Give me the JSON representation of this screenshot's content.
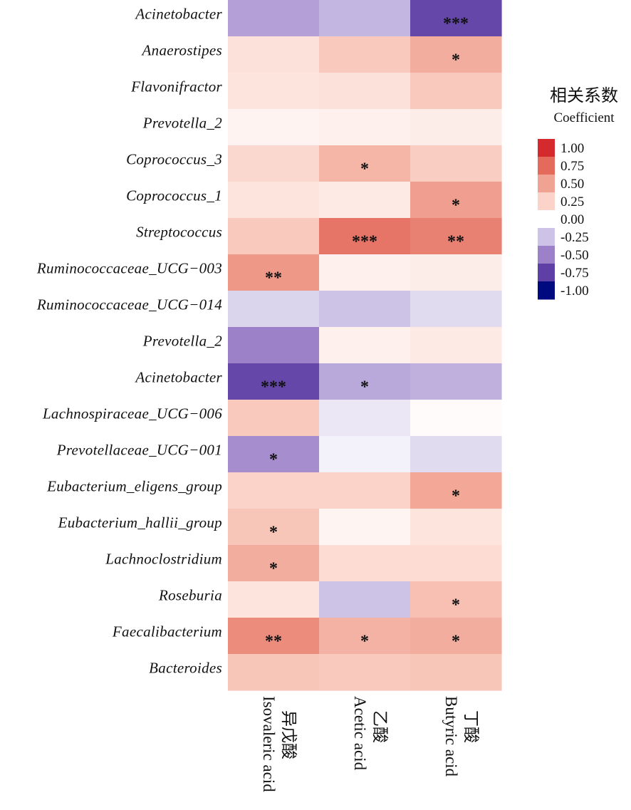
{
  "chart_data": {
    "type": "heatmap",
    "rows": [
      "Acinetobacter",
      "Anaerostipes",
      "Flavonifractor",
      "Prevotella_2",
      "Coprococcus_3",
      "Coprococcus_1",
      "Streptococcus",
      "Ruminococcaceae_UCG−003",
      "Ruminococcaceae_UCG−014",
      "Prevotella_2",
      "Acinetobacter",
      "Lachnospiraceae_UCG−006",
      "Prevotellaceae_UCG−001",
      "Eubacterium_eligens_group",
      "Eubacterium_hallii_group",
      "Lachnoclostridium",
      "Roseburia",
      "Faecalibacterium",
      "Bacteroides"
    ],
    "columns": [
      {
        "zh": "异戊酸",
        "en": "Isovaleric acid"
      },
      {
        "zh": "乙酸",
        "en": "Acetic acid"
      },
      {
        "zh": "丁酸",
        "en": "Butyric acid"
      }
    ],
    "values": [
      [
        -0.38,
        -0.3,
        -0.72
      ],
      [
        0.17,
        0.3,
        0.45
      ],
      [
        0.15,
        0.17,
        0.3
      ],
      [
        0.07,
        0.08,
        0.1
      ],
      [
        0.22,
        0.4,
        0.28
      ],
      [
        0.15,
        0.12,
        0.52
      ],
      [
        0.3,
        0.7,
        0.65
      ],
      [
        0.55,
        0.08,
        0.1
      ],
      [
        -0.18,
        -0.25,
        -0.15
      ],
      [
        -0.5,
        0.08,
        0.12
      ],
      [
        -0.72,
        -0.35,
        -0.32
      ],
      [
        0.3,
        -0.1,
        0.02
      ],
      [
        -0.45,
        -0.06,
        -0.15
      ],
      [
        0.25,
        0.25,
        0.48
      ],
      [
        0.32,
        0.06,
        0.15
      ],
      [
        0.45,
        0.2,
        0.2
      ],
      [
        0.15,
        -0.25,
        0.35
      ],
      [
        0.6,
        0.42,
        0.45
      ],
      [
        0.32,
        0.3,
        0.32
      ]
    ],
    "significance": [
      [
        "",
        "",
        "***"
      ],
      [
        "",
        "",
        "*"
      ],
      [
        "",
        "",
        ""
      ],
      [
        "",
        "",
        ""
      ],
      [
        "",
        "*",
        ""
      ],
      [
        "",
        "",
        "*"
      ],
      [
        "",
        "***",
        "**"
      ],
      [
        "**",
        "",
        ""
      ],
      [
        "",
        "",
        ""
      ],
      [
        "",
        "",
        ""
      ],
      [
        "***",
        "*",
        ""
      ],
      [
        "",
        "",
        ""
      ],
      [
        "*",
        "",
        ""
      ],
      [
        "",
        "",
        "*"
      ],
      [
        "*",
        "",
        ""
      ],
      [
        "*",
        "",
        ""
      ],
      [
        "",
        "",
        "*"
      ],
      [
        "**",
        "*",
        "*"
      ],
      [
        "",
        "",
        ""
      ]
    ],
    "color_scale": {
      "title_zh": "相关系数",
      "title_en": "Coefficient",
      "range": [
        -1,
        1
      ],
      "stops": [
        {
          "value": 1.0,
          "label": "1.00",
          "color": "#d42a2e"
        },
        {
          "value": 0.75,
          "label": "0.75",
          "color": "#e46a5c"
        },
        {
          "value": 0.5,
          "label": "0.50",
          "color": "#f1a393"
        },
        {
          "value": 0.25,
          "label": "0.25",
          "color": "#fbd3c8"
        },
        {
          "value": 0.0,
          "label": "0.00",
          "color": "#ffffff"
        },
        {
          "value": -0.25,
          "label": "-0.25",
          "color": "#cdc3e6"
        },
        {
          "value": -0.5,
          "label": "-0.50",
          "color": "#9c80c8"
        },
        {
          "value": -0.75,
          "label": "-0.75",
          "color": "#5e3fa6"
        },
        {
          "value": -1.0,
          "label": "-1.00",
          "color": "#000a80"
        }
      ],
      "legend_placement": "right"
    }
  }
}
